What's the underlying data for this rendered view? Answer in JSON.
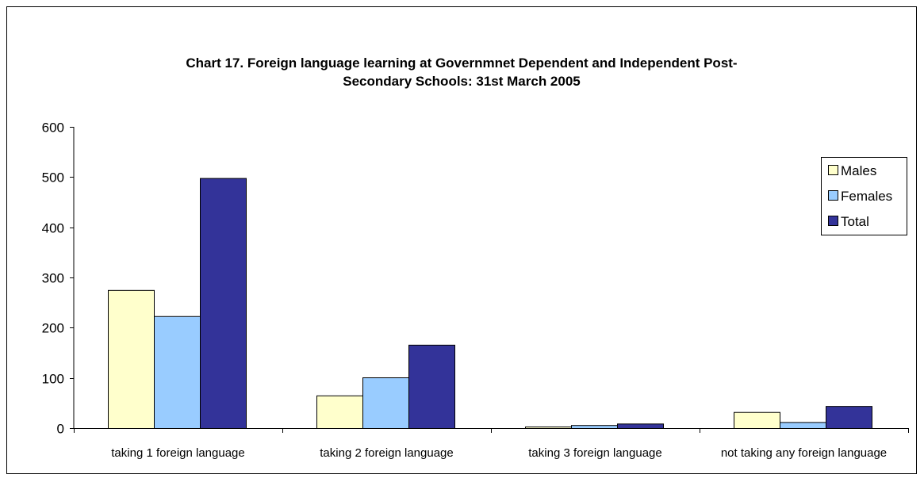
{
  "chart_data": {
    "type": "bar",
    "title_lines": [
      "Chart 17.  Foreign language learning at Governmnet Dependent and Independent Post-",
      "Secondary Schools: 31st March 2005"
    ],
    "categories": [
      "taking 1 foreign language",
      "taking 2 foreign language",
      "taking 3 foreign language",
      "not taking any foreign language"
    ],
    "series": [
      {
        "name": "Males",
        "color": "#FFFFCC",
        "values": [
          275,
          65,
          3,
          32
        ]
      },
      {
        "name": "Females",
        "color": "#99CCFF",
        "values": [
          223,
          101,
          6,
          12
        ]
      },
      {
        "name": "Total",
        "color": "#333399",
        "values": [
          498,
          166,
          9,
          44
        ]
      }
    ],
    "ylim": [
      0,
      600
    ],
    "yticks": [
      0,
      100,
      200,
      300,
      400,
      500,
      600
    ],
    "xlabel": "",
    "ylabel": "",
    "grid": false,
    "legend_position": "right"
  }
}
